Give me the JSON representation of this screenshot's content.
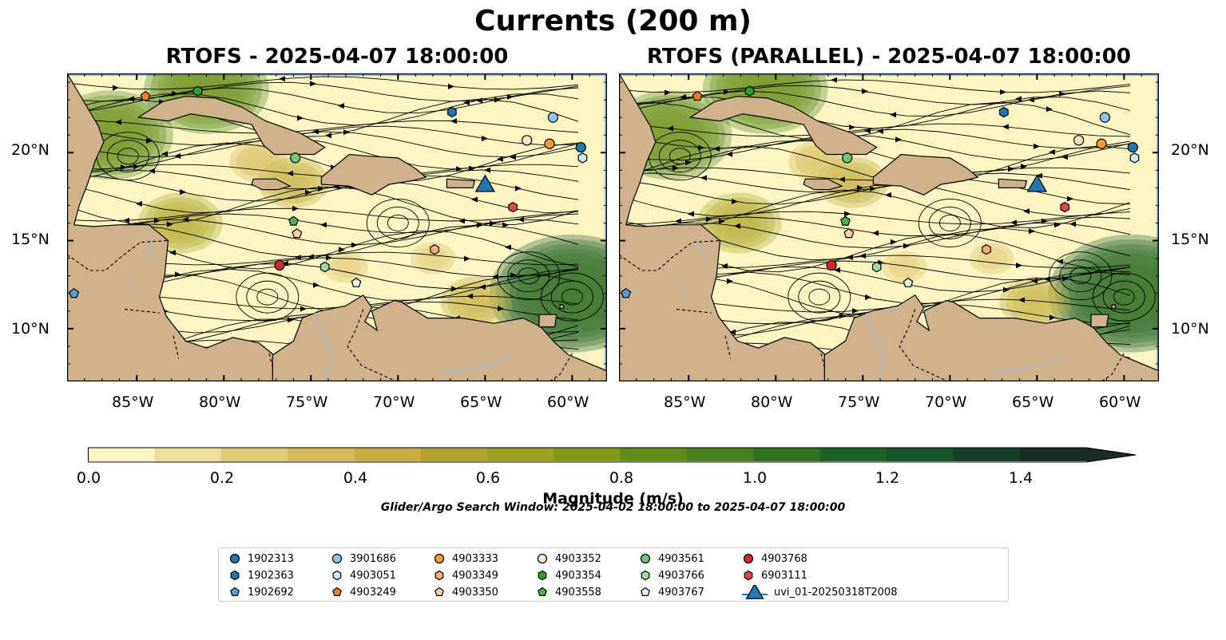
{
  "figure": {
    "title": "Currents (200 m)",
    "panels": [
      {
        "title": "RTOFS - 2025-04-07 18:00:00"
      },
      {
        "title": "RTOFS (PARALLEL) - 2025-04-07 18:00:00"
      }
    ],
    "x_ticks": [
      "85°W",
      "80°W",
      "75°W",
      "70°W",
      "65°W",
      "60°W"
    ],
    "y_ticks": [
      "20°N",
      "15°N",
      "10°N"
    ],
    "map_extent": {
      "lon": [
        -89,
        -58
      ],
      "lat": [
        7,
        24.5
      ]
    },
    "colors": {
      "land": "#cfb28c",
      "water_fill": "#99b7e3",
      "border": "#000000"
    }
  },
  "colorbar": {
    "label": "Magnitude (m/s)",
    "ticks": [
      "0.0",
      "0.2",
      "0.4",
      "0.6",
      "0.8",
      "1.0",
      "1.2",
      "1.4"
    ],
    "range": [
      0,
      1.5
    ],
    "extend": "max",
    "colors": [
      "#fbf5c2",
      "#eedf9b",
      "#e2cb78",
      "#d5b95a",
      "#c8ae42",
      "#b3a32e",
      "#9ba221",
      "#819917",
      "#5f8c1a",
      "#44801d",
      "#2e731f",
      "#1c6426",
      "#14552c",
      "#163f2a",
      "#1b2c22"
    ]
  },
  "search_window": "Glider/Argo Search Window: 2025-04-02 18:00:00 to 2025-04-07 18:00:00",
  "legend": [
    {
      "label": "1902313",
      "marker": "circle",
      "color": "#1f77b4"
    },
    {
      "label": "1902363",
      "marker": "hexagon",
      "color": "#1f77b4"
    },
    {
      "label": "1902692",
      "marker": "pentagon",
      "color": "#5aa0d8"
    },
    {
      "label": "3901686",
      "marker": "circle",
      "color": "#8fc4ec"
    },
    {
      "label": "4903051",
      "marker": "hexagon",
      "color": "#cfe6f7"
    },
    {
      "label": "4903249",
      "marker": "pentagon",
      "color": "#ff7f0e"
    },
    {
      "label": "4903333",
      "marker": "circle",
      "color": "#fb9a3a"
    },
    {
      "label": "4903349",
      "marker": "hexagon",
      "color": "#fdb075"
    },
    {
      "label": "4903350",
      "marker": "pentagon",
      "color": "#fdd0a2"
    },
    {
      "label": "4903352",
      "marker": "circle",
      "color": "#fde4cf"
    },
    {
      "label": "4903354",
      "marker": "hexagon",
      "color": "#2ca02c"
    },
    {
      "label": "4903558",
      "marker": "pentagon",
      "color": "#4cb04c"
    },
    {
      "label": "4903561",
      "marker": "circle",
      "color": "#74c476"
    },
    {
      "label": "4903766",
      "marker": "hexagon",
      "color": "#a1d99b"
    },
    {
      "label": "4903767",
      "marker": "pentagon",
      "color": "#e5f5e0"
    },
    {
      "label": "4903768",
      "marker": "circle",
      "color": "#d62728"
    },
    {
      "label": "6903111",
      "marker": "hexagon",
      "color": "#e0464a"
    },
    {
      "label": "uvi_01-20250318T2008",
      "marker": "triangle",
      "color": "#1f77b4"
    }
  ],
  "markers": [
    {
      "id": "4903249",
      "lon": -84.5,
      "lat": 23.2
    },
    {
      "id": "4903354",
      "lon": -81.5,
      "lat": 23.5
    },
    {
      "id": "1902363",
      "lon": -66.9,
      "lat": 22.3
    },
    {
      "id": "3901686",
      "lon": -61.1,
      "lat": 22.0
    },
    {
      "id": "4903352",
      "lon": -62.6,
      "lat": 20.7
    },
    {
      "id": "4903333",
      "lon": -61.3,
      "lat": 20.5
    },
    {
      "id": "1902313",
      "lon": -59.5,
      "lat": 20.3
    },
    {
      "id": "4903051",
      "lon": -59.4,
      "lat": 19.7
    },
    {
      "id": "4903561",
      "lon": -75.9,
      "lat": 19.7
    },
    {
      "id": "6903111",
      "lon": -63.4,
      "lat": 16.9
    },
    {
      "id": "4903558",
      "lon": -76.0,
      "lat": 16.1
    },
    {
      "id": "4903350",
      "lon": -75.8,
      "lat": 15.4
    },
    {
      "id": "4903349",
      "lon": -67.9,
      "lat": 14.5
    },
    {
      "id": "4903766",
      "lon": -74.2,
      "lat": 13.5
    },
    {
      "id": "4903768",
      "lon": -76.8,
      "lat": 13.6
    },
    {
      "id": "4903767",
      "lon": -72.4,
      "lat": 12.6
    },
    {
      "id": "1902692",
      "lon": -88.6,
      "lat": 12.0
    },
    {
      "id": "uvi_01-20250318T2008",
      "lon": -65.0,
      "lat": 18.1
    }
  ]
}
